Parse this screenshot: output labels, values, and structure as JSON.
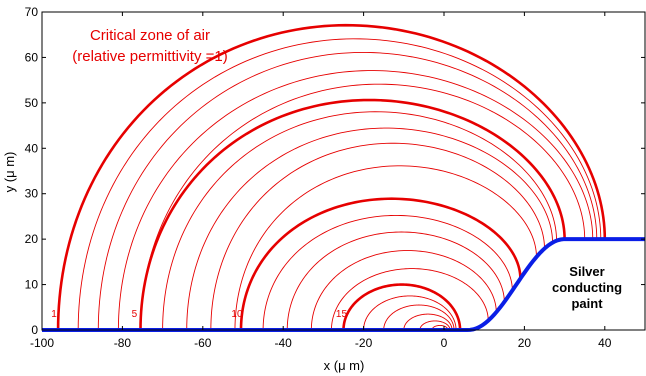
{
  "chart_data": {
    "type": "line",
    "title": "",
    "xlabel": "x (μ m)",
    "ylabel": "y (μ m)",
    "xlim": [
      -100,
      50
    ],
    "ylim": [
      0,
      70
    ],
    "xticks": [
      "-100",
      "-80",
      "-60",
      "-40",
      "-20",
      "0",
      "20",
      "40"
    ],
    "yticks": [
      "0",
      "10",
      "20",
      "30",
      "40",
      "50",
      "60",
      "70"
    ],
    "grid": false,
    "annotations": {
      "zone_line1": "Critical zone of  air",
      "zone_line2": "(relative permittivity =1)",
      "paint_line1": "Silver",
      "paint_line2": "conducting",
      "paint_line3": "paint"
    },
    "contour_labels": [
      {
        "text": "1",
        "x": -97,
        "y": 4
      },
      {
        "text": "5",
        "x": -77,
        "y": 4
      },
      {
        "text": "10",
        "x": -51.5,
        "y": 4
      },
      {
        "text": "15",
        "x": -25.5,
        "y": 4
      }
    ],
    "contours": [
      {
        "left": -96,
        "right": 40,
        "top": 62,
        "bold": true
      },
      {
        "left": -91,
        "right": 39,
        "top": 59,
        "bold": false
      },
      {
        "left": -86,
        "right": 38,
        "top": 56,
        "bold": false
      },
      {
        "left": -81,
        "right": 37,
        "top": 52,
        "bold": false
      },
      {
        "left": -75.5,
        "right": 35,
        "top": 49,
        "bold": false
      },
      {
        "left": -75.5,
        "right": 30,
        "top": 45.5,
        "bold": true
      },
      {
        "left": -70,
        "right": 28,
        "top": 43,
        "bold": false
      },
      {
        "left": -64,
        "right": 27,
        "top": 39.5,
        "bold": false
      },
      {
        "left": -58,
        "right": 25,
        "top": 36.5,
        "bold": false
      },
      {
        "left": -52,
        "right": 23,
        "top": 32,
        "bold": false
      },
      {
        "left": -50.5,
        "right": 19,
        "top": 26,
        "bold": true
      },
      {
        "left": -45,
        "right": 17,
        "top": 23,
        "bold": false
      },
      {
        "left": -39,
        "right": 15,
        "top": 20,
        "bold": false
      },
      {
        "left": -33,
        "right": 13,
        "top": 16.5,
        "bold": false
      },
      {
        "left": -28,
        "right": 11,
        "top": 13,
        "bold": false
      },
      {
        "left": -25,
        "right": 4,
        "top": 10,
        "bold": true
      },
      {
        "left": -20,
        "right": 3,
        "top": 7.5,
        "bold": false
      },
      {
        "left": -15,
        "right": 2.5,
        "top": 5.5,
        "bold": false
      },
      {
        "left": -10,
        "right": 2,
        "top": 3.5,
        "bold": false
      },
      {
        "left": -6,
        "right": 1.5,
        "top": 2,
        "bold": false
      },
      {
        "left": -3,
        "right": 1,
        "top": 1,
        "bold": false
      }
    ],
    "boundary": {
      "name": "Silver conducting paint",
      "flat_y": 0,
      "rise_start": 6,
      "rise_end": 30,
      "top_y": 20,
      "color": "#0a1ee6"
    },
    "contour_color": "#e60000"
  }
}
